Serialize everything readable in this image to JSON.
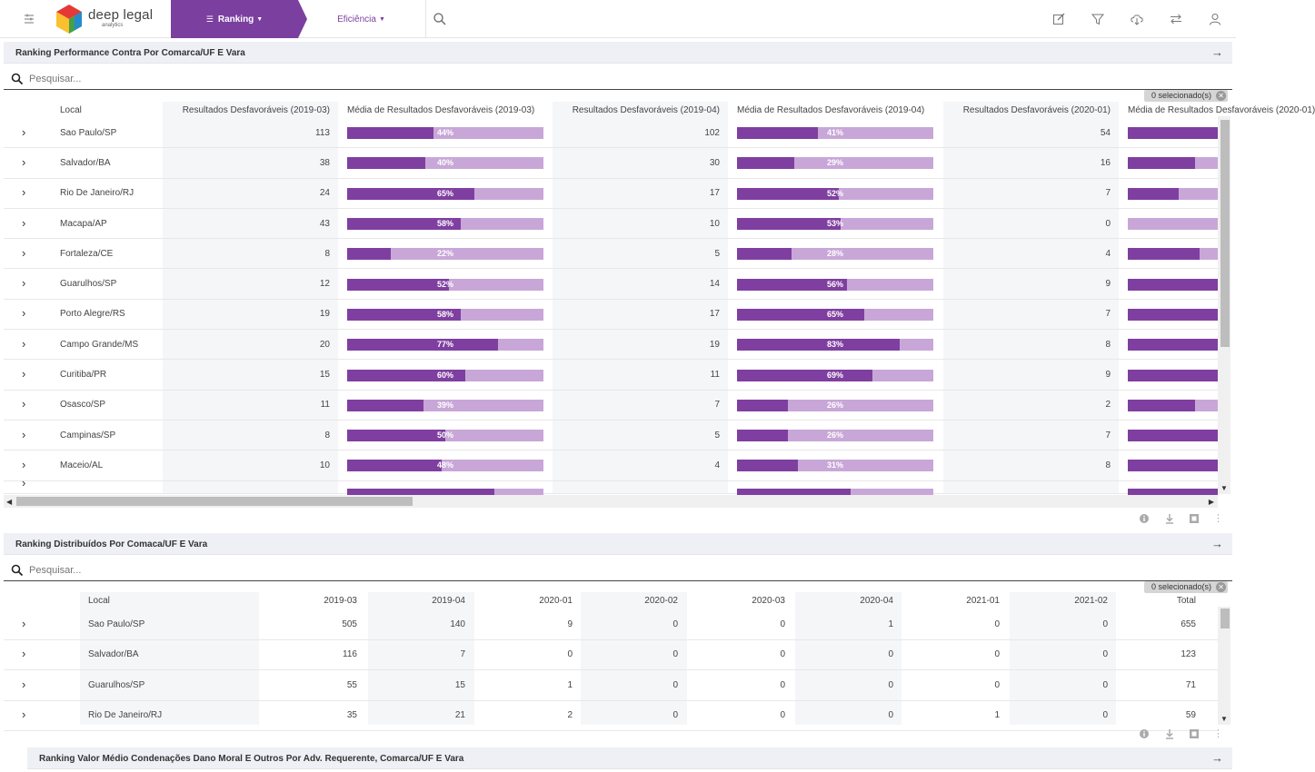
{
  "topbar": {
    "logo_name": "deep legal",
    "logo_sub": "analytics",
    "nav_ranking": "Ranking",
    "nav_eficiencia": "Eficiência",
    "accent": "#7b3fa0"
  },
  "panel1": {
    "title": "Ranking Performance Contra Por Comarca/UF E Vara",
    "search_placeholder": "Pesquisar...",
    "selected": "0 selecionado(s)",
    "headers": [
      "Local",
      "Resultados Desfavoráveis (2019-03)",
      "Média de Resultados Desfavoráveis (2019-03)",
      "Resultados Desfavoráveis (2019-04)",
      "Média de Resultados Desfavoráveis (2019-04)",
      "Resultados Desfavoráveis (2020-01)",
      "Média de Resultados Desfavoráveis (2020-01)"
    ],
    "rows": [
      {
        "local": "Sao Paulo/SP",
        "r1": "113",
        "m1": 44,
        "r2": "102",
        "m2": 41,
        "r3": "54",
        "m3": 100
      },
      {
        "local": "Salvador/BA",
        "r1": "38",
        "m1": 40,
        "r2": "30",
        "m2": 29,
        "r3": "16",
        "m3": 75
      },
      {
        "local": "Rio De Janeiro/RJ",
        "r1": "24",
        "m1": 65,
        "r2": "17",
        "m2": 52,
        "r3": "7",
        "m3": 57
      },
      {
        "local": "Macapa/AP",
        "r1": "43",
        "m1": 58,
        "r2": "10",
        "m2": 53,
        "r3": "0",
        "m3": 0
      },
      {
        "local": "Fortaleza/CE",
        "r1": "8",
        "m1": 22,
        "r2": "5",
        "m2": 28,
        "r3": "4",
        "m3": 80
      },
      {
        "local": "Guarulhos/SP",
        "r1": "12",
        "m1": 52,
        "r2": "14",
        "m2": 56,
        "r3": "9",
        "m3": 100
      },
      {
        "local": "Porto Alegre/RS",
        "r1": "19",
        "m1": 58,
        "r2": "17",
        "m2": 65,
        "r3": "7",
        "m3": 100
      },
      {
        "local": "Campo Grande/MS",
        "r1": "20",
        "m1": 77,
        "r2": "19",
        "m2": 83,
        "r3": "8",
        "m3": 100
      },
      {
        "local": "Curitiba/PR",
        "r1": "15",
        "m1": 60,
        "r2": "11",
        "m2": 69,
        "r3": "9",
        "m3": 100
      },
      {
        "local": "Osasco/SP",
        "r1": "11",
        "m1": 39,
        "r2": "7",
        "m2": 26,
        "r3": "2",
        "m3": 75
      },
      {
        "local": "Campinas/SP",
        "r1": "8",
        "m1": 50,
        "r2": "5",
        "m2": 26,
        "r3": "7",
        "m3": 100
      },
      {
        "local": "Maceio/AL",
        "r1": "10",
        "m1": 48,
        "r2": "4",
        "m2": 31,
        "r3": "8",
        "m3": 100
      }
    ]
  },
  "panel2": {
    "title": "Ranking Distribuídos Por Comaca/UF E Vara",
    "search_placeholder": "Pesquisar...",
    "selected": "0 selecionado(s)",
    "headers": [
      "Local",
      "2019-03",
      "2019-04",
      "2020-01",
      "2020-02",
      "2020-03",
      "2020-04",
      "2021-01",
      "2021-02",
      "Total"
    ],
    "rows": [
      {
        "local": "Sao Paulo/SP",
        "v": [
          "505",
          "140",
          "9",
          "0",
          "0",
          "1",
          "0",
          "0",
          "655"
        ]
      },
      {
        "local": "Salvador/BA",
        "v": [
          "116",
          "7",
          "0",
          "0",
          "0",
          "0",
          "0",
          "0",
          "123"
        ]
      },
      {
        "local": "Guarulhos/SP",
        "v": [
          "55",
          "15",
          "1",
          "0",
          "0",
          "0",
          "0",
          "0",
          "71"
        ]
      },
      {
        "local": "Rio De Janeiro/RJ",
        "v": [
          "35",
          "21",
          "2",
          "0",
          "0",
          "0",
          "1",
          "0",
          "59"
        ]
      }
    ]
  },
  "panel3": {
    "title": "Ranking Valor Médio Condenações Dano Moral E Outros Por Adv. Requerente, Comarca/UF E Vara"
  }
}
